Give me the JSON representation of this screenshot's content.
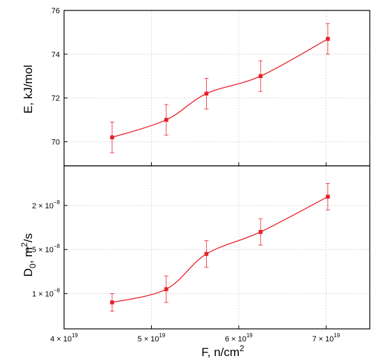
{
  "chart_data": [
    {
      "type": "line",
      "panel": "top",
      "ylabel": "E, kJ/mol",
      "ylim": [
        68.9,
        76
      ],
      "yticks": [
        {
          "value": 70,
          "label": "70"
        },
        {
          "value": 72,
          "label": "72"
        },
        {
          "value": 74,
          "label": "74"
        },
        {
          "value": 76,
          "label": "76"
        }
      ],
      "grid": true,
      "color": "#e8202a",
      "series": [
        {
          "x": [
            4.55e+19,
            5.17e+19,
            5.63e+19,
            6.25e+19,
            7.02e+19
          ],
          "y": [
            70.2,
            71.0,
            72.2,
            73.0,
            74.7
          ],
          "yerr": [
            0.7,
            0.7,
            0.7,
            0.7,
            0.7
          ]
        }
      ]
    },
    {
      "type": "line",
      "panel": "bottom",
      "ylabel": "D",
      "ylabel_sub": "0",
      "ylabel_rest": ", m",
      "ylabel_sup": "2",
      "ylabel_end": "/s",
      "ylim": [
        6e-09,
        2.45e-08
      ],
      "yticks": [
        {
          "value": 1e-08,
          "label": "1 × 10",
          "exp": "−8"
        },
        {
          "value": 1.5e-08,
          "label": "1.5 × 10",
          "exp": "−8"
        },
        {
          "value": 2e-08,
          "label": "2 × 10",
          "exp": "−8"
        }
      ],
      "grid": true,
      "color": "#e8202a",
      "series": [
        {
          "x": [
            4.55e+19,
            5.17e+19,
            5.63e+19,
            6.25e+19,
            7.02e+19
          ],
          "y": [
            9e-09,
            1.05e-08,
            1.45e-08,
            1.7e-08,
            2.1e-08
          ],
          "yerr": [
            1e-09,
            1.5e-09,
            1.5e-09,
            1.5e-09,
            1.5e-09
          ]
        }
      ]
    }
  ],
  "x_axis": {
    "xlabel": "F, n/cm",
    "xlabel_sup": "2",
    "xlim": [
      4e+19,
      7.5e+19
    ],
    "xticks": [
      {
        "value": 4e+19,
        "label": "4 × 10",
        "exp": "19"
      },
      {
        "value": 5e+19,
        "label": "5 × 10",
        "exp": "19"
      },
      {
        "value": 6e+19,
        "label": "6 × 10",
        "exp": "19"
      },
      {
        "value": 7e+19,
        "label": "7 × 10",
        "exp": "19"
      }
    ]
  }
}
